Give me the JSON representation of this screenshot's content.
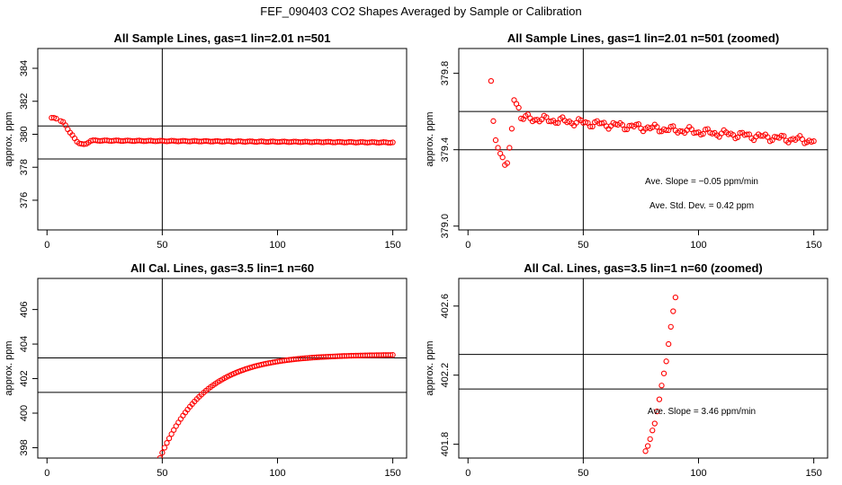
{
  "figure_title": "FEF_090403  CO2 Shapes Averaged by Sample or Calibration",
  "chart_data": [
    {
      "type": "scatter",
      "title": "All Sample Lines, gas=1 lin=2.01 n=501",
      "xlabel": "",
      "ylabel": "approx. ppm",
      "xlim": [
        -4,
        156
      ],
      "ylim": [
        374.2,
        385.2
      ],
      "xticks": [
        0,
        50,
        100,
        150
      ],
      "xtick_labels": [
        "0",
        "50",
        "100",
        "150"
      ],
      "yticks": [
        376,
        378,
        380,
        382,
        384
      ],
      "ytick_labels": [
        "376",
        "378",
        "380",
        "382",
        "384"
      ],
      "vline": 50,
      "hlines": [
        378.5,
        380.5
      ],
      "series_shape": "sample_full",
      "color": "#ff0000"
    },
    {
      "type": "scatter",
      "title": "All Sample Lines, gas=1 lin=2.01 n=501 (zoomed)",
      "xlabel": "",
      "ylabel": "approx. ppm",
      "xlim": [
        -4,
        156
      ],
      "ylim": [
        378.98,
        379.93
      ],
      "xticks": [
        0,
        50,
        100,
        150
      ],
      "xtick_labels": [
        "0",
        "50",
        "100",
        "150"
      ],
      "yticks": [
        379.0,
        379.4,
        379.8
      ],
      "ytick_labels": [
        "379.0",
        "379.4",
        "379.8"
      ],
      "vline": 50,
      "hlines": [
        379.4,
        379.6
      ],
      "series_shape": "sample_zoom",
      "annotations": [
        "Ave. Slope =  −0.05  ppm/min",
        "Ave. Std. Dev. =  0.42  ppm"
      ],
      "color": "#ff0000"
    },
    {
      "type": "scatter",
      "title": "All Cal. Lines, gas=3.5 lin=1 n=60",
      "xlabel": "",
      "ylabel": "approx. ppm",
      "xlim": [
        -4,
        156
      ],
      "ylim": [
        397.4,
        407.8
      ],
      "xticks": [
        0,
        50,
        100,
        150
      ],
      "xtick_labels": [
        "0",
        "50",
        "100",
        "150"
      ],
      "yticks": [
        398,
        400,
        402,
        404,
        406
      ],
      "ytick_labels": [
        "398",
        "400",
        "402",
        "404",
        "406"
      ],
      "vline": 50,
      "hlines": [
        401.2,
        403.2
      ],
      "series_shape": "cal_full",
      "color": "#ff0000"
    },
    {
      "type": "scatter",
      "title": "All Cal. Lines, gas=3.5 lin=1 n=60 (zoomed)",
      "xlabel": "",
      "ylabel": "approx. ppm",
      "xlim": [
        -4,
        156
      ],
      "ylim": [
        401.72,
        402.76
      ],
      "xticks": [
        0,
        50,
        100,
        150
      ],
      "xtick_labels": [
        "0",
        "50",
        "100",
        "150"
      ],
      "yticks": [
        401.8,
        402.2,
        402.6
      ],
      "ytick_labels": [
        "401.8",
        "402.2",
        "402.6"
      ],
      "vline": 50,
      "hlines": [
        402.12,
        402.32
      ],
      "series_shape": "cal_zoom",
      "annotations": [
        "Ave. Slope =  3.46  ppm/min"
      ],
      "color": "#ff0000"
    }
  ]
}
